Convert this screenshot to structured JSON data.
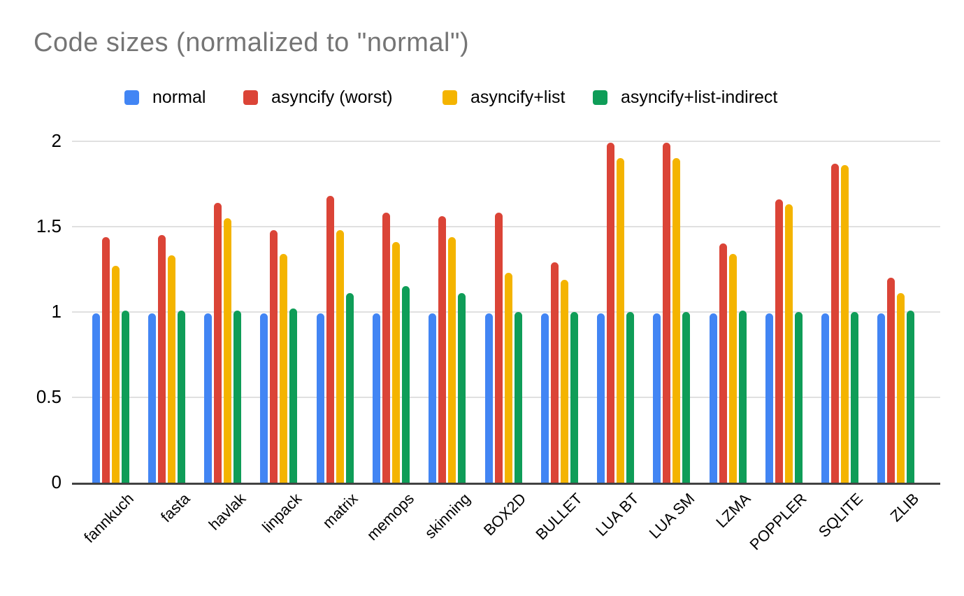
{
  "chart_data": {
    "type": "bar",
    "title": "Code sizes (normalized to \"normal\")",
    "categories": [
      "fannkuch",
      "fasta",
      "havlak",
      "linpack",
      "matrix",
      "memops",
      "skinning",
      "BOX2D",
      "BULLET",
      "LUA BT",
      "LUA SM",
      "LZMA",
      "POPPLER",
      "SQLITE",
      "ZLIB"
    ],
    "series": [
      {
        "name": "normal",
        "color": "#4285F4",
        "values": [
          0.99,
          0.99,
          0.99,
          0.99,
          0.99,
          0.99,
          0.99,
          0.99,
          0.99,
          0.99,
          0.99,
          0.99,
          0.99,
          0.99,
          0.99
        ]
      },
      {
        "name": "asyncify (worst)",
        "color": "#DB4437",
        "values": [
          1.44,
          1.45,
          1.64,
          1.48,
          1.68,
          1.58,
          1.56,
          1.58,
          1.29,
          1.99,
          1.99,
          1.4,
          1.66,
          1.87,
          1.2
        ]
      },
      {
        "name": "asyncify+list",
        "color": "#F4B400",
        "values": [
          1.27,
          1.33,
          1.55,
          1.34,
          1.48,
          1.41,
          1.44,
          1.23,
          1.19,
          1.9,
          1.9,
          1.34,
          1.63,
          1.86,
          1.11
        ]
      },
      {
        "name": "asyncify+list-indirect",
        "color": "#0F9D58",
        "values": [
          1.01,
          1.01,
          1.01,
          1.02,
          1.11,
          1.15,
          1.11,
          1.0,
          1.0,
          1.0,
          1.0,
          1.01,
          1.0,
          1.0,
          1.01
        ]
      }
    ],
    "xlabel": "",
    "ylabel": "",
    "ylim": [
      0,
      2
    ],
    "yticks": [
      "0",
      "0.5",
      "1",
      "1.5",
      "2"
    ],
    "ytick_values": [
      0,
      0.5,
      1,
      1.5,
      2
    ],
    "grid": true,
    "legend_position": "top",
    "title_color": "#757575",
    "gridline_color": "#E0E0E0",
    "axis_line_color": "#424242",
    "label_color": "#000000"
  }
}
